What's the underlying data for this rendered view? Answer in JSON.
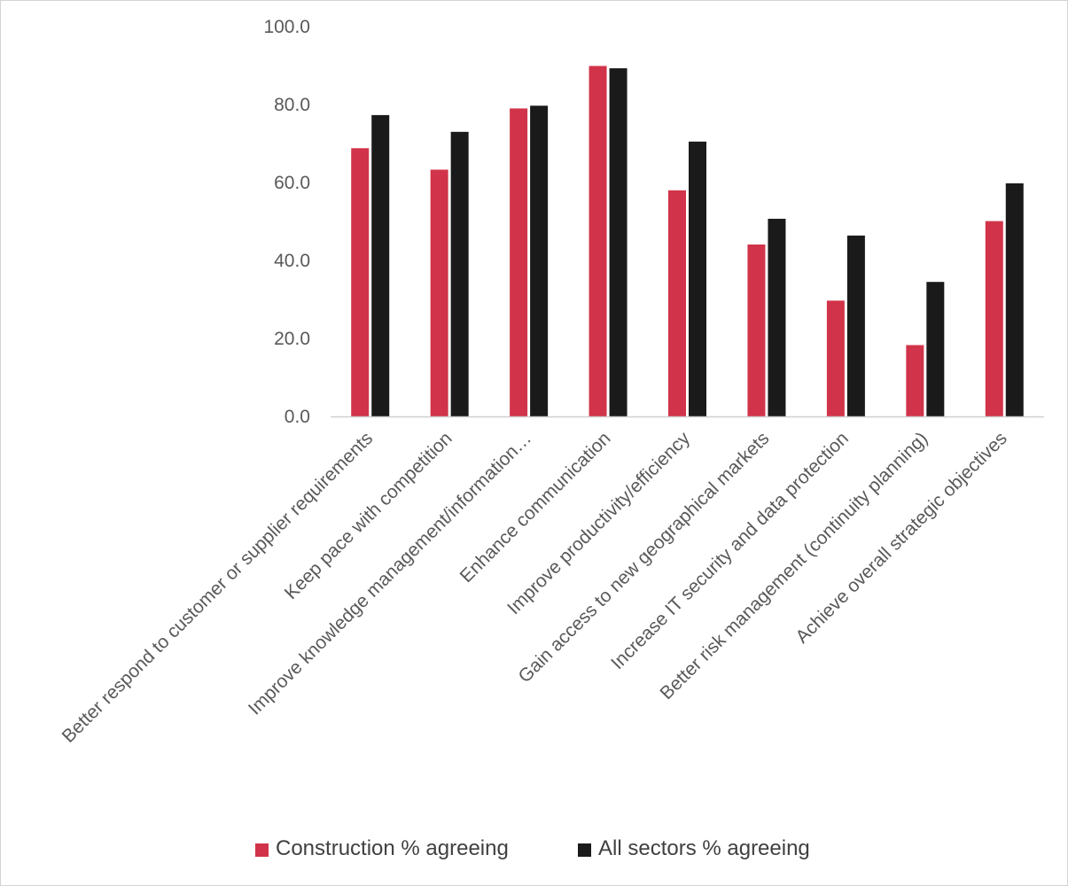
{
  "chart_data": {
    "type": "bar",
    "categories": [
      "Better respond to customer or supplier requirements",
      "Keep pace with competition",
      "Improve knowledge management/information…",
      "Enhance communication",
      "Improve productivity/efficiency",
      "Gain access to new geographical markets",
      "Increase IT security and data protection",
      "Better risk management (continuity planning)",
      "Achieve overall strategic objectives"
    ],
    "series": [
      {
        "name": "Construction % agreeing",
        "color": "#d1344a",
        "values": [
          68.8,
          63.3,
          79.0,
          89.9,
          58.0,
          44.1,
          29.7,
          18.3,
          50.1
        ]
      },
      {
        "name": "All sectors % agreeing",
        "color": "#1a1a1a",
        "values": [
          77.3,
          73.0,
          79.7,
          89.3,
          70.5,
          50.7,
          46.4,
          34.5,
          59.8
        ]
      }
    ],
    "yticks": [
      "0.0",
      "20.0",
      "40.0",
      "60.0",
      "80.0",
      "100.0"
    ],
    "ylim": [
      0,
      100
    ],
    "grid": false,
    "legend_position": "bottom"
  }
}
